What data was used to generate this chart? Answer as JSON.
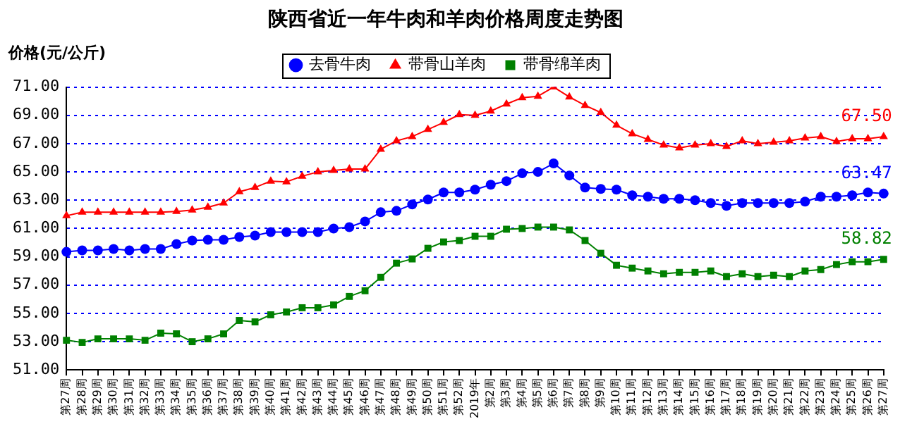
{
  "chart_data": {
    "type": "line",
    "title": "陕西省近一年牛肉和羊肉价格周度走势图",
    "ylabel": "价格(元/公斤)",
    "categories": [
      "第27周",
      "第28周",
      "第29周",
      "第30周",
      "第31周",
      "第32周",
      "第33周",
      "第34周",
      "第35周",
      "第36周",
      "第37周",
      "第38周",
      "第39周",
      "第40周",
      "第41周",
      "第42周",
      "第43周",
      "第44周",
      "第45周",
      "第46周",
      "第47周",
      "第48周",
      "第49周",
      "第50周",
      "第51周",
      "第52周",
      "2019年",
      "第2周",
      "第3周",
      "第4周",
      "第5周",
      "第6周",
      "第7周",
      "第8周",
      "第9周",
      "第10周",
      "第11周",
      "第12周",
      "第13周",
      "第14周",
      "第15周",
      "第16周",
      "第17周",
      "第18周",
      "第19周",
      "第20周",
      "第21周",
      "第22周",
      "第23周",
      "第24周",
      "第25周",
      "第26周",
      "第27周"
    ],
    "series": [
      {
        "name": "去骨牛肉",
        "color": "#0000ff",
        "marker": "circle",
        "values": [
          59.35,
          59.45,
          59.45,
          59.55,
          59.45,
          59.55,
          59.55,
          59.9,
          60.15,
          60.2,
          60.2,
          60.4,
          60.5,
          60.75,
          60.75,
          60.75,
          60.75,
          61.0,
          61.1,
          61.5,
          62.15,
          62.25,
          62.7,
          63.05,
          63.55,
          63.55,
          63.75,
          64.1,
          64.35,
          64.9,
          65.0,
          65.6,
          64.75,
          63.9,
          63.8,
          63.75,
          63.35,
          63.25,
          63.1,
          63.1,
          63.0,
          62.8,
          62.6,
          62.8,
          62.8,
          62.8,
          62.8,
          62.9,
          63.25,
          63.25,
          63.35,
          63.55,
          63.47
        ],
        "value_labels": [
          null,
          null,
          null,
          null,
          null,
          null,
          null,
          null,
          null,
          null,
          null,
          null,
          null,
          null,
          null,
          null,
          null,
          null,
          null,
          null,
          null,
          null,
          null,
          null,
          null,
          null,
          null,
          null,
          null,
          null,
          null,
          null,
          null,
          null,
          null,
          null,
          null,
          null,
          null,
          null,
          null,
          null,
          null,
          null,
          null,
          null,
          null,
          null,
          null,
          null,
          null,
          null,
          "63.47"
        ]
      },
      {
        "name": "带骨山羊肉",
        "color": "#ff0000",
        "marker": "triangle",
        "values": [
          61.9,
          62.15,
          62.15,
          62.15,
          62.15,
          62.15,
          62.15,
          62.2,
          62.3,
          62.5,
          62.8,
          63.6,
          63.9,
          64.35,
          64.3,
          64.7,
          65.0,
          65.1,
          65.2,
          65.2,
          66.6,
          67.2,
          67.5,
          68.0,
          68.5,
          69.05,
          69.0,
          69.3,
          69.8,
          70.25,
          70.35,
          71.0,
          70.3,
          69.7,
          69.2,
          68.3,
          67.7,
          67.3,
          66.9,
          66.7,
          66.9,
          67.0,
          66.8,
          67.2,
          67.0,
          67.1,
          67.2,
          67.4,
          67.5,
          67.15,
          67.35,
          67.35,
          67.5
        ],
        "value_labels": [
          null,
          null,
          null,
          null,
          null,
          null,
          null,
          null,
          null,
          null,
          null,
          null,
          null,
          null,
          null,
          null,
          null,
          null,
          null,
          null,
          null,
          null,
          null,
          null,
          null,
          null,
          null,
          null,
          null,
          null,
          null,
          null,
          null,
          null,
          null,
          null,
          null,
          null,
          null,
          null,
          null,
          null,
          null,
          null,
          null,
          null,
          null,
          null,
          null,
          null,
          null,
          null,
          "67.50"
        ]
      },
      {
        "name": "带骨绵羊肉",
        "color": "#008000",
        "marker": "square",
        "values": [
          53.1,
          52.95,
          53.2,
          53.2,
          53.2,
          53.1,
          53.6,
          53.55,
          53.0,
          53.2,
          53.55,
          54.5,
          54.4,
          54.9,
          55.1,
          55.4,
          55.4,
          55.6,
          56.2,
          56.6,
          57.55,
          58.55,
          58.85,
          59.6,
          60.05,
          60.15,
          60.45,
          60.45,
          60.95,
          61.0,
          61.1,
          61.1,
          60.9,
          60.15,
          59.25,
          58.4,
          58.2,
          58.0,
          57.8,
          57.9,
          57.9,
          58.0,
          57.6,
          57.8,
          57.6,
          57.7,
          57.6,
          58.0,
          58.1,
          58.45,
          58.65,
          58.65,
          58.82
        ],
        "value_labels": [
          null,
          null,
          null,
          null,
          null,
          null,
          null,
          null,
          null,
          null,
          null,
          null,
          null,
          null,
          null,
          null,
          null,
          null,
          null,
          null,
          null,
          null,
          null,
          null,
          null,
          null,
          null,
          null,
          null,
          null,
          null,
          null,
          null,
          null,
          null,
          null,
          null,
          null,
          null,
          null,
          null,
          null,
          null,
          null,
          null,
          null,
          null,
          null,
          null,
          null,
          null,
          null,
          "58.82"
        ]
      }
    ],
    "ylim": [
      51,
      71
    ],
    "yticks": [
      {
        "value": 51,
        "label": "51.00"
      },
      {
        "value": 53,
        "label": "53.00"
      },
      {
        "value": 55,
        "label": "55.00"
      },
      {
        "value": 57,
        "label": "57.00"
      },
      {
        "value": 59,
        "label": "59.00"
      },
      {
        "value": 61,
        "label": "61.00"
      },
      {
        "value": 63,
        "label": "63.00"
      },
      {
        "value": 65,
        "label": "65.00"
      },
      {
        "value": 67,
        "label": "67.00"
      },
      {
        "value": 69,
        "label": "69.00"
      },
      {
        "value": 71,
        "label": "71.00"
      }
    ],
    "grid": "y",
    "legend": "top",
    "line_style": "solid"
  }
}
